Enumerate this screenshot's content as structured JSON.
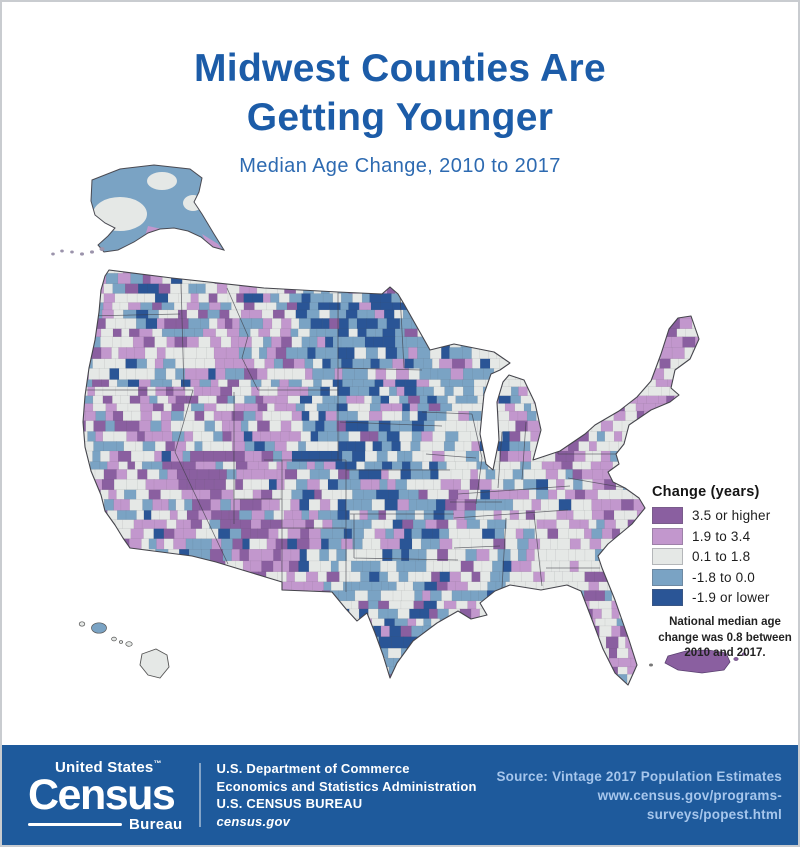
{
  "poster": {
    "title_line1": "Midwest Counties Are",
    "title_line2": "Getting Younger",
    "subtitle": "Median Age Change, 2010 to 2017"
  },
  "legend": {
    "heading": "Change (years)",
    "items": [
      {
        "label": "3.5 or higher",
        "color": "#8a5fa0"
      },
      {
        "label": "1.9 to 3.4",
        "color": "#c297cd"
      },
      {
        "label": "0.1 to 1.8",
        "color": "#e5e8e6"
      },
      {
        "label": "-1.8 to 0.0",
        "color": "#7aa3c4"
      },
      {
        "label": "-1.9 or lower",
        "color": "#2a5596"
      }
    ],
    "note": "National median age change was 0.8 between 2010 and 2017."
  },
  "chart_data": {
    "type": "choropleth",
    "title": "Midwest Counties Are Getting Younger",
    "subtitle": "Median Age Change, 2010 to 2017",
    "unit": "years",
    "classes": [
      "3.5 or higher",
      "1.9 to 3.4",
      "0.1 to 1.8",
      "-1.8 to 0.0",
      "-1.9 or lower"
    ],
    "class_colors": [
      "#8a5fa0",
      "#c297cd",
      "#e5e8e6",
      "#7aa3c4",
      "#2a5596"
    ],
    "national_median_age_change": 0.8,
    "period": "2010 to 2017",
    "regions_shown": [
      "Contiguous United States",
      "Alaska",
      "Hawaii",
      "Puerto Rico"
    ],
    "legend_position": "right"
  },
  "footer": {
    "logo_top": "United States",
    "logo_tm": "™",
    "logo_main": "Census",
    "logo_sub": "Bureau",
    "dept_line1": "U.S. Department of Commerce",
    "dept_line2": "Economics and Statistics Administration",
    "dept_line3": "U.S. CENSUS BUREAU",
    "dept_site": "census.gov",
    "source_line1": "Source: Vintage 2017 Population Estimates",
    "source_line2": "www.census.gov/programs-surveys/popest.html"
  },
  "colors": {
    "title_blue": "#1c5ca8",
    "subtitle_blue": "#2d6ab1",
    "footer_bg": "#1e5a9c",
    "footer_light_text": "#a6c6ec",
    "map_outline": "#45454c"
  }
}
